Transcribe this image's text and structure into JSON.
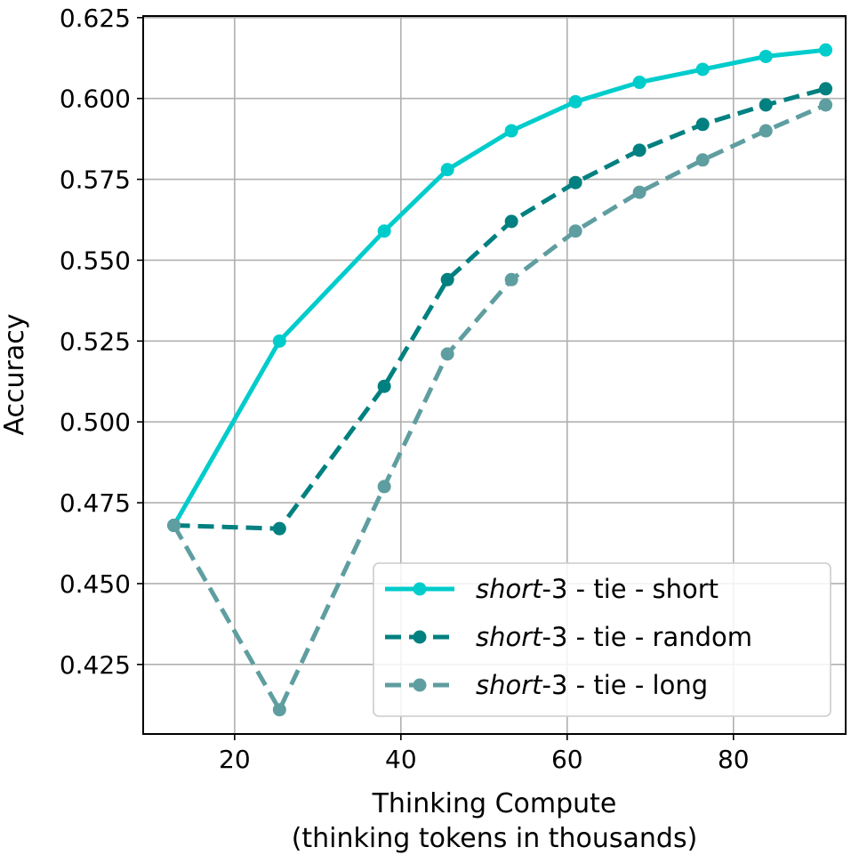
{
  "chart_data": {
    "type": "line",
    "xlabel": "Thinking Compute",
    "xlabel_line2": "(thinking tokens in thousands)",
    "ylabel": "Accuracy",
    "xlim": [
      9,
      93.5
    ],
    "ylim": [
      0.4035,
      0.6255
    ],
    "xticks": [
      20,
      40,
      60,
      80
    ],
    "yticks": [
      0.425,
      0.45,
      0.475,
      0.5,
      0.525,
      0.55,
      0.575,
      0.6,
      0.625
    ],
    "ytick_labels": [
      "0.425",
      "0.450",
      "0.475",
      "0.500",
      "0.525",
      "0.550",
      "0.575",
      "0.600",
      "0.625"
    ],
    "grid": true,
    "legend_position": "lower-right",
    "series": [
      {
        "name_italic": "short",
        "name_rest": "-3 - tie - short",
        "color": "#00cccc",
        "dashed": false,
        "x": [
          12.7,
          25.4,
          38.0,
          45.6,
          53.3,
          61.0,
          68.7,
          76.3,
          83.9,
          91.1
        ],
        "y": [
          0.468,
          0.525,
          0.559,
          0.578,
          0.59,
          0.599,
          0.605,
          0.609,
          0.613,
          0.615
        ]
      },
      {
        "name_italic": "short",
        "name_rest": "-3 - tie - random",
        "color": "#008080",
        "dashed": true,
        "x": [
          12.7,
          25.4,
          38.0,
          45.6,
          53.3,
          61.0,
          68.7,
          76.3,
          83.9,
          91.1
        ],
        "y": [
          0.468,
          0.467,
          0.511,
          0.544,
          0.562,
          0.574,
          0.584,
          0.592,
          0.598,
          0.603
        ]
      },
      {
        "name_italic": "short",
        "name_rest": "-3 - tie - long",
        "color": "#5f9ea0",
        "dashed": true,
        "x": [
          12.7,
          25.4,
          38.0,
          45.6,
          53.3,
          61.0,
          68.7,
          76.3,
          83.9,
          91.1
        ],
        "y": [
          0.468,
          0.411,
          0.48,
          0.521,
          0.544,
          0.559,
          0.571,
          0.581,
          0.59,
          0.598
        ]
      }
    ]
  }
}
